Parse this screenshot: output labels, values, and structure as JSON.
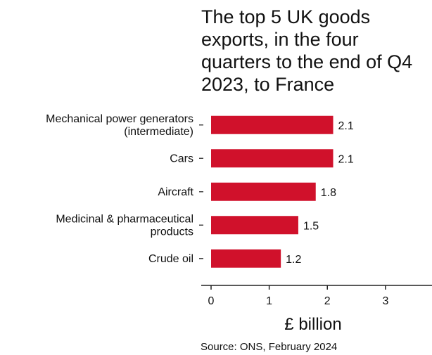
{
  "chart_data": {
    "type": "bar",
    "orientation": "horizontal",
    "title_lines": [
      "The top 5 UK goods",
      "exports, in the four",
      "quarters to the end of Q4",
      "2023, to France"
    ],
    "categories": [
      [
        "Mechanical power generators",
        "(intermediate)"
      ],
      [
        "Cars"
      ],
      [
        "Aircraft"
      ],
      [
        "Medicinal & pharmaceutical",
        "products"
      ],
      [
        "Crude oil"
      ]
    ],
    "values": [
      2.1,
      2.1,
      1.8,
      1.5,
      1.2
    ],
    "value_labels": [
      "2.1",
      "2.1",
      "1.8",
      "1.5",
      "1.2"
    ],
    "xlabel": "£ billion",
    "xlim": [
      0,
      3.8
    ],
    "xticks": [
      0,
      1,
      2,
      3
    ],
    "xtick_labels": [
      "0",
      "1",
      "2",
      "3"
    ],
    "grid": false,
    "bar_color": "#d0112b",
    "source": "Source: ONS, February 2024"
  }
}
